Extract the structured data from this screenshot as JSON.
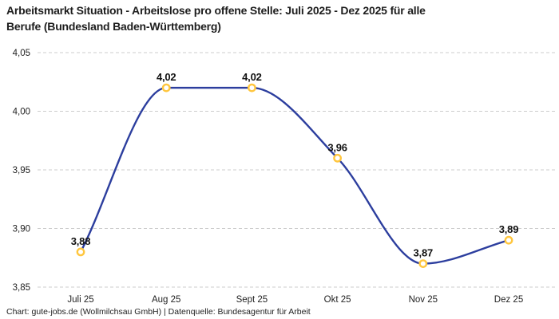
{
  "title": "Arbeitsmarkt Situation - Arbeitslose pro offene Stelle: Juli 2025 - Dez 2025 für alle\nBerufe (Bundesland Baden-Württemberg)",
  "footer": "Chart: gute-jobs.de (Wollmilchsau GmbH) | Datenquelle: Bundesagentur für Arbeit",
  "colors": {
    "line": "#2c3e9e",
    "marker_ring": "#ffc63e",
    "marker_fill": "#ffffff",
    "grid": "#cccccc",
    "title_text": "#1d1d1d",
    "axis_text": "#222222",
    "data_label_text": "#111111",
    "background": "#ffffff"
  },
  "chart_data": {
    "type": "line",
    "title": "Arbeitsmarkt Situation - Arbeitslose pro offene Stelle: Juli 2025 - Dez 2025 für alle Berufe (Bundesland Baden-Württemberg)",
    "categories": [
      "Juli 25",
      "Aug 25",
      "Sept 25",
      "Okt 25",
      "Nov 25",
      "Dez 25"
    ],
    "series": [
      {
        "values": [
          3.88,
          4.02,
          4.02,
          3.96,
          3.87,
          3.89
        ],
        "labels": [
          "3,88",
          "4,02",
          "4,02",
          "3,96",
          "3,87",
          "3,89"
        ]
      }
    ],
    "xlabel": "",
    "ylabel": "",
    "ylim": [
      3.85,
      4.05
    ],
    "yticks": [
      3.85,
      3.9,
      3.95,
      4.0,
      4.05
    ],
    "ytick_labels": [
      "3,85",
      "3,90",
      "3,95",
      "4,00",
      "4,05"
    ],
    "grid": "horizontal-dashed",
    "legend": "none",
    "curve": "smooth",
    "markers": "open-circle"
  }
}
